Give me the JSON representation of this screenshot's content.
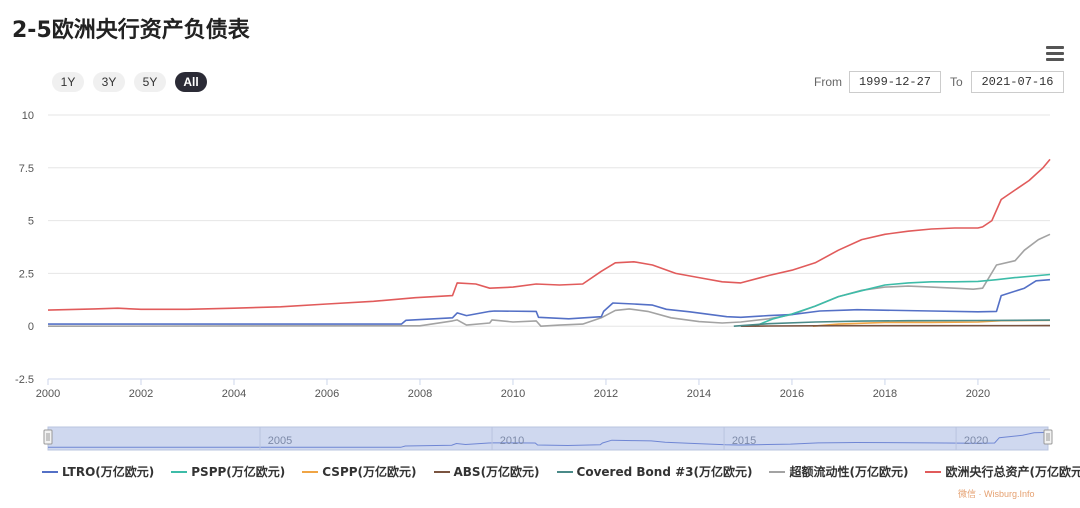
{
  "title": "2-5欧洲央行资产负债表",
  "range_selector": {
    "buttons": [
      "1Y",
      "3Y",
      "5Y",
      "All"
    ],
    "active": "All"
  },
  "date_range": {
    "from_label": "From",
    "from_value": "1999-12-27",
    "to_label": "To",
    "to_value": "2021-07-16"
  },
  "watermark": "微信 · Wisburg.Info",
  "chart_data": {
    "type": "line",
    "xlim": [
      2000,
      2021.55
    ],
    "ylim": [
      -2.5,
      10
    ],
    "yticks": [
      -2.5,
      0,
      2.5,
      5,
      7.5,
      10
    ],
    "ytick_labels": [
      "-2.5",
      "0",
      "2.5",
      "5",
      "7.5",
      "10"
    ],
    "xticks": [
      2000,
      2002,
      2004,
      2006,
      2008,
      2010,
      2012,
      2014,
      2016,
      2018,
      2020
    ],
    "xtick_labels": [
      "2000",
      "2002",
      "2004",
      "2006",
      "2008",
      "2010",
      "2012",
      "2014",
      "2016",
      "2018",
      "2020"
    ],
    "grid": true,
    "legend_position": "bottom",
    "navigator": {
      "labels": [
        "2005",
        "2010",
        "2015",
        "2020"
      ],
      "label_years": [
        2005,
        2010,
        2015,
        2020
      ]
    },
    "series": [
      {
        "name": "LTRO(万亿欧元)",
        "color": "#5470c6",
        "points": [
          [
            2000,
            0.1
          ],
          [
            2007.6,
            0.1
          ],
          [
            2007.7,
            0.28
          ],
          [
            2008.7,
            0.4
          ],
          [
            2008.8,
            0.63
          ],
          [
            2009.0,
            0.5
          ],
          [
            2009.5,
            0.7
          ],
          [
            2009.6,
            0.72
          ],
          [
            2010.5,
            0.7
          ],
          [
            2010.55,
            0.42
          ],
          [
            2011.2,
            0.35
          ],
          [
            2011.9,
            0.45
          ],
          [
            2011.95,
            0.7
          ],
          [
            2012.15,
            1.1
          ],
          [
            2012.6,
            1.05
          ],
          [
            2013.0,
            1.0
          ],
          [
            2013.3,
            0.8
          ],
          [
            2013.8,
            0.68
          ],
          [
            2014.6,
            0.45
          ],
          [
            2014.9,
            0.42
          ],
          [
            2015.5,
            0.5
          ],
          [
            2016.0,
            0.55
          ],
          [
            2016.6,
            0.72
          ],
          [
            2017.2,
            0.76
          ],
          [
            2017.4,
            0.78
          ],
          [
            2019.0,
            0.72
          ],
          [
            2020.0,
            0.68
          ],
          [
            2020.4,
            0.7
          ],
          [
            2020.5,
            1.45
          ],
          [
            2021.0,
            1.8
          ],
          [
            2021.25,
            2.15
          ],
          [
            2021.55,
            2.2
          ]
        ]
      },
      {
        "name": "PSPP(万亿欧元)",
        "color": "#3dbca8",
        "points": [
          [
            2015.2,
            0
          ],
          [
            2015.6,
            0.35
          ],
          [
            2016.0,
            0.58
          ],
          [
            2016.5,
            0.95
          ],
          [
            2017.0,
            1.4
          ],
          [
            2017.5,
            1.68
          ],
          [
            2018.0,
            1.95
          ],
          [
            2018.5,
            2.05
          ],
          [
            2019.0,
            2.1
          ],
          [
            2019.5,
            2.1
          ],
          [
            2020.0,
            2.12
          ],
          [
            2020.4,
            2.2
          ],
          [
            2020.8,
            2.3
          ],
          [
            2021.55,
            2.45
          ]
        ]
      },
      {
        "name": "CSPP(万亿欧元)",
        "color": "#f0a545",
        "points": [
          [
            2016.45,
            0
          ],
          [
            2017.0,
            0.1
          ],
          [
            2018.0,
            0.18
          ],
          [
            2019.0,
            0.18
          ],
          [
            2020.0,
            0.2
          ],
          [
            2020.5,
            0.26
          ],
          [
            2021.55,
            0.28
          ]
        ]
      },
      {
        "name": "ABS(万亿欧元)",
        "color": "#7a5440",
        "points": [
          [
            2014.9,
            0
          ],
          [
            2015.5,
            0.01
          ],
          [
            2017.0,
            0.025
          ],
          [
            2021.55,
            0.03
          ]
        ]
      },
      {
        "name": "Covered Bond #3(万亿欧元)",
        "color": "#4a8a88",
        "points": [
          [
            2014.75,
            0
          ],
          [
            2015.5,
            0.12
          ],
          [
            2016.5,
            0.2
          ],
          [
            2017.5,
            0.24
          ],
          [
            2018.5,
            0.26
          ],
          [
            2020.0,
            0.27
          ],
          [
            2021.55,
            0.29
          ]
        ]
      },
      {
        "name": "超额流动性(万亿欧元)",
        "color": "#a3a3a3",
        "points": [
          [
            2000,
            0
          ],
          [
            2008.0,
            0.02
          ],
          [
            2008.7,
            0.25
          ],
          [
            2008.8,
            0.3
          ],
          [
            2009.0,
            0.05
          ],
          [
            2009.5,
            0.15
          ],
          [
            2009.55,
            0.3
          ],
          [
            2010.0,
            0.2
          ],
          [
            2010.5,
            0.25
          ],
          [
            2010.6,
            0.0
          ],
          [
            2011.0,
            0.05
          ],
          [
            2011.5,
            0.1
          ],
          [
            2011.9,
            0.4
          ],
          [
            2012.2,
            0.75
          ],
          [
            2012.5,
            0.82
          ],
          [
            2012.9,
            0.7
          ],
          [
            2013.4,
            0.4
          ],
          [
            2014.0,
            0.22
          ],
          [
            2014.5,
            0.15
          ],
          [
            2014.9,
            0.2
          ],
          [
            2015.5,
            0.35
          ],
          [
            2016.0,
            0.55
          ],
          [
            2016.5,
            0.95
          ],
          [
            2017.0,
            1.4
          ],
          [
            2017.5,
            1.7
          ],
          [
            2018.0,
            1.85
          ],
          [
            2018.5,
            1.9
          ],
          [
            2019.0,
            1.85
          ],
          [
            2019.5,
            1.8
          ],
          [
            2019.9,
            1.75
          ],
          [
            2020.1,
            1.8
          ],
          [
            2020.4,
            2.9
          ],
          [
            2020.8,
            3.1
          ],
          [
            2021.0,
            3.6
          ],
          [
            2021.3,
            4.1
          ],
          [
            2021.55,
            4.35
          ]
        ]
      },
      {
        "name": "欧洲央行总资产(万亿欧元)",
        "color": "#e15b5b",
        "points": [
          [
            2000,
            0.76
          ],
          [
            2001.0,
            0.82
          ],
          [
            2001.5,
            0.85
          ],
          [
            2002.0,
            0.8
          ],
          [
            2003.0,
            0.8
          ],
          [
            2004.0,
            0.85
          ],
          [
            2005.0,
            0.92
          ],
          [
            2006.0,
            1.05
          ],
          [
            2007.0,
            1.18
          ],
          [
            2007.9,
            1.35
          ],
          [
            2008.7,
            1.45
          ],
          [
            2008.8,
            2.05
          ],
          [
            2009.2,
            2.0
          ],
          [
            2009.5,
            1.8
          ],
          [
            2010.0,
            1.85
          ],
          [
            2010.5,
            2.0
          ],
          [
            2011.0,
            1.95
          ],
          [
            2011.5,
            2.0
          ],
          [
            2011.9,
            2.6
          ],
          [
            2012.2,
            3.0
          ],
          [
            2012.6,
            3.05
          ],
          [
            2013.0,
            2.9
          ],
          [
            2013.5,
            2.5
          ],
          [
            2014.0,
            2.3
          ],
          [
            2014.5,
            2.1
          ],
          [
            2014.9,
            2.05
          ],
          [
            2015.5,
            2.4
          ],
          [
            2016.0,
            2.65
          ],
          [
            2016.5,
            3.0
          ],
          [
            2017.0,
            3.6
          ],
          [
            2017.5,
            4.1
          ],
          [
            2018.0,
            4.35
          ],
          [
            2018.5,
            4.5
          ],
          [
            2019.0,
            4.6
          ],
          [
            2019.5,
            4.65
          ],
          [
            2020.0,
            4.65
          ],
          [
            2020.1,
            4.7
          ],
          [
            2020.3,
            5.0
          ],
          [
            2020.5,
            6.0
          ],
          [
            2020.9,
            6.6
          ],
          [
            2021.1,
            6.9
          ],
          [
            2021.4,
            7.5
          ],
          [
            2021.55,
            7.9
          ]
        ]
      }
    ]
  }
}
